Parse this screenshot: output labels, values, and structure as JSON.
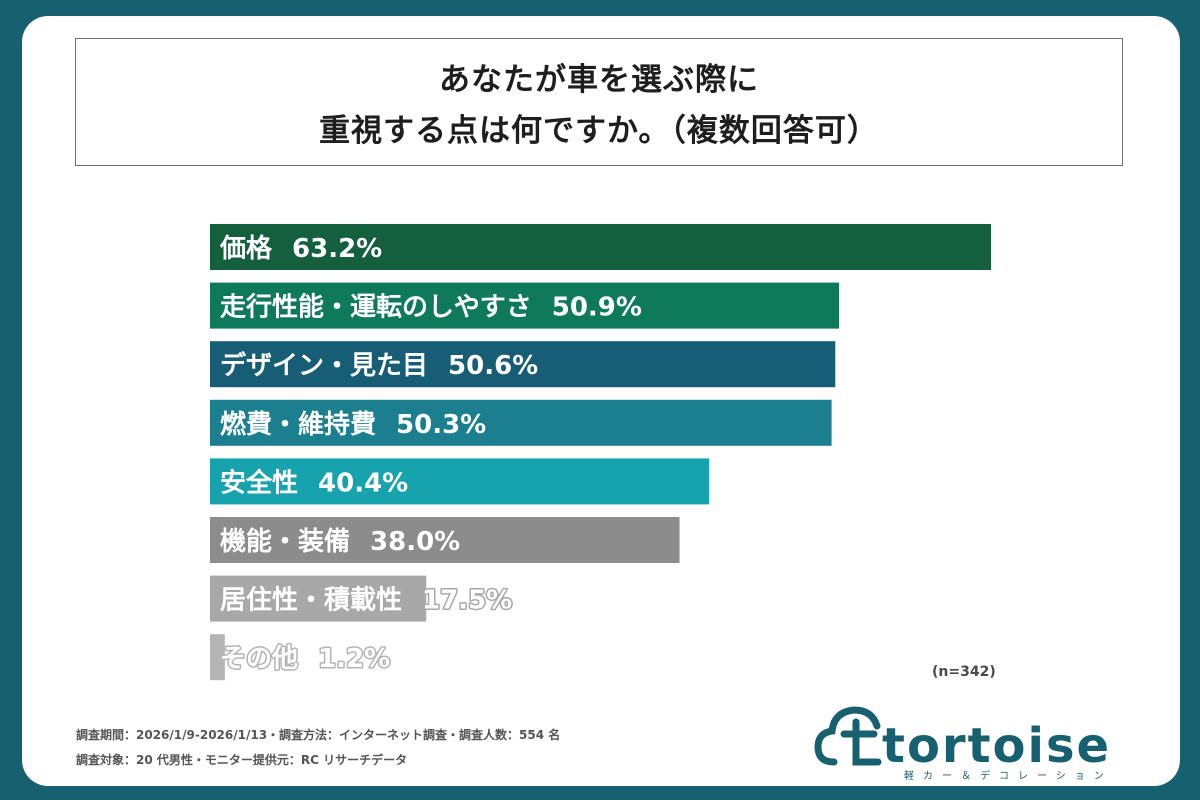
{
  "title": {
    "line1": "あなたが車を選ぶ際に",
    "line2": "重視する点は何ですか。（複数回答可）"
  },
  "chart_data": {
    "type": "bar",
    "orientation": "horizontal",
    "title": "あなたが車を選ぶ際に重視する点は何ですか。（複数回答可）",
    "categories": [
      "価格",
      "走行性能・運転のしやすさ",
      "デザイン・見た目",
      "燃費・維持費",
      "安全性",
      "機能・装備",
      "居住性・積載性",
      "その他"
    ],
    "values": [
      63.2,
      50.9,
      50.6,
      50.3,
      40.4,
      38.0,
      17.5,
      1.2
    ],
    "value_labels": [
      "63.2%",
      "50.9%",
      "50.6%",
      "50.3%",
      "40.4%",
      "38.0%",
      "17.5%",
      "1.2%"
    ],
    "colors": [
      "#135f3e",
      "#0f7a5a",
      "#185d76",
      "#1b7f90",
      "#16a3ad",
      "#8c8c8c",
      "#a8a8a8",
      "#b4b4b4"
    ],
    "unit": "%",
    "xlim": [
      0,
      63.2
    ],
    "xlabel": "",
    "ylabel": "",
    "grid": false
  },
  "sample_size": "(n=342)",
  "footer": {
    "line1": "調査期間：2026/1/9-2026/1/13・調査方法：インターネット調査・調査人数：554 名",
    "line2": "調査対象：20 代男性・モニター提供元：RC リサーチデータ"
  },
  "logo": {
    "name": "tortoise",
    "tagline": "軽カー＆デコレーション",
    "color": "#17606f"
  }
}
